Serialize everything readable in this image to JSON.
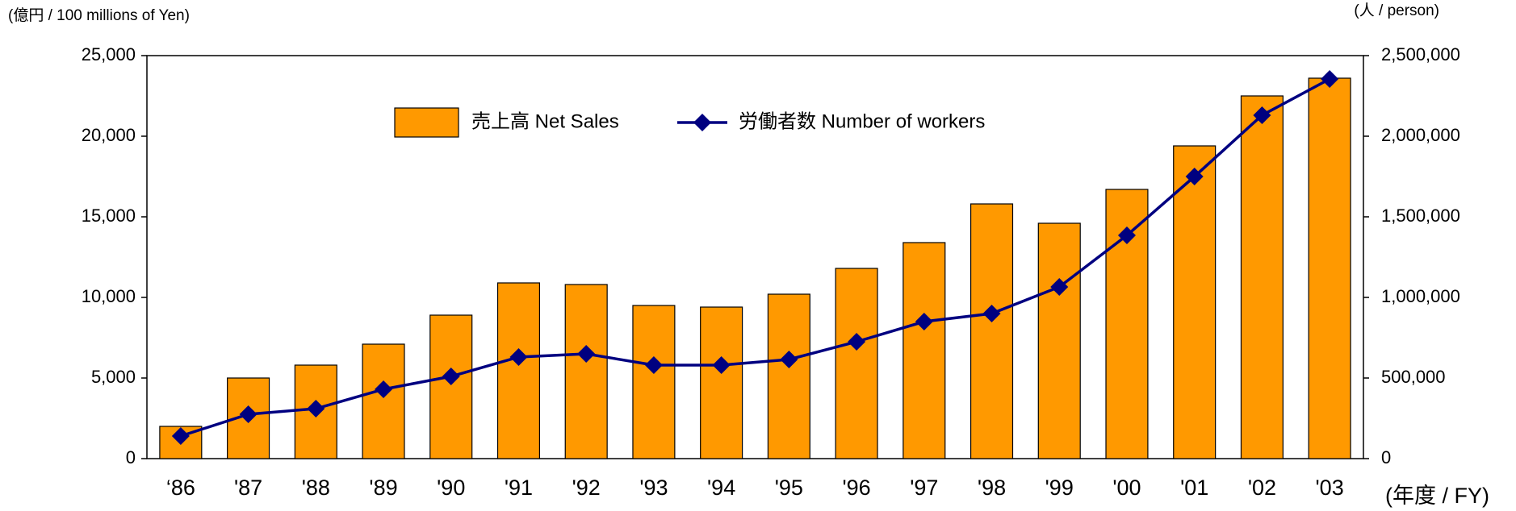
{
  "chart_data": {
    "type": "bar-line",
    "y_label": "(億円 / 100 millions of Yen)",
    "y2_label": "(人 / person)",
    "x_label": "(年度 / FY)",
    "categories": [
      "‘86",
      "'87",
      "'88",
      "'89",
      "'90",
      "'91",
      "'92",
      "'93",
      "'94",
      "'95",
      "'96",
      "'97",
      "'98",
      "'99",
      "'00",
      "'01",
      "'02",
      "'03"
    ],
    "series": [
      {
        "name": "売上高 Net Sales",
        "type": "bar",
        "color": "#ff9900",
        "values": [
          2000,
          5000,
          5800,
          7100,
          8900,
          10900,
          10800,
          9500,
          9400,
          10200,
          11800,
          13400,
          15800,
          14600,
          16700,
          19400,
          22500,
          23600
        ]
      },
      {
        "name": "労働者数 Number of workers",
        "type": "line",
        "axis": "y2",
        "color": "#000080",
        "values": [
          140000,
          275000,
          310000,
          430000,
          510000,
          630000,
          650000,
          580000,
          580000,
          615000,
          725000,
          850000,
          900000,
          1065000,
          1385000,
          1750000,
          2130000,
          2355000
        ]
      }
    ],
    "ylim": [
      0,
      25000
    ],
    "yticks": [
      0,
      {
        "value": 5000,
        "label": "5,000"
      },
      {
        "value": 10000,
        "label": "10,000"
      },
      {
        "value": 15000,
        "label": "15,000"
      },
      {
        "value": 20000,
        "label": "20,000"
      },
      {
        "value": 25000,
        "label": "25,000"
      }
    ],
    "y2lim": [
      0,
      2500000
    ],
    "y2ticks": [
      0,
      {
        "value": 500000,
        "label": "500,000"
      },
      {
        "value": 1000000,
        "label": "1,000,000"
      },
      {
        "value": 1500000,
        "label": "1,500,000"
      },
      {
        "value": 2000000,
        "label": "2,000,000"
      },
      {
        "value": 2500000,
        "label": "2,500,000"
      }
    ],
    "grid": false,
    "legend": "top"
  }
}
